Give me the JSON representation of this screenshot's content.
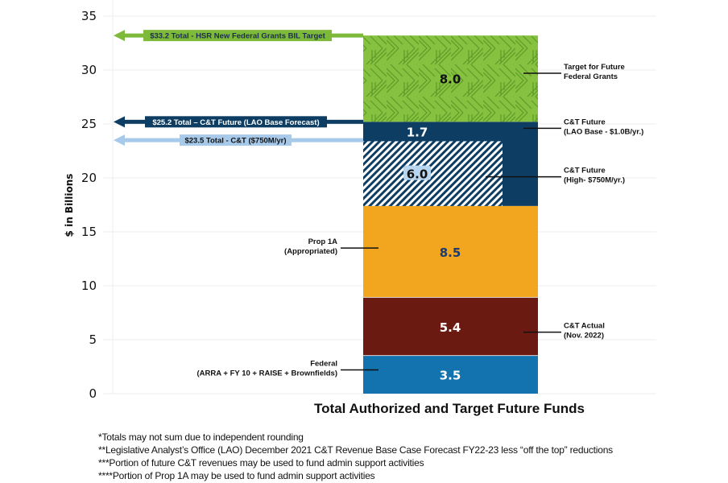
{
  "chart_data": {
    "type": "bar",
    "stacked": true,
    "title": "",
    "xlabel": "Total Authorized and Target Future Funds",
    "ylabel": "$ in Billions",
    "ylim": [
      0,
      35
    ],
    "yticks": [
      0,
      5,
      10,
      15,
      20,
      25,
      30,
      35
    ],
    "grid": true,
    "categories": [
      "Total Authorized and Target Future Funds"
    ],
    "series": [
      {
        "name": "Federal (ARRA + FY 10 + RAISE + Brownfields)",
        "label": [
          "Federal",
          "(ARRA + FY 10 + RAISE + Brownfields)"
        ],
        "value": 3.5,
        "display": "3.5",
        "color": "#1273ae",
        "text_color": "#ffffff",
        "label_side": "left"
      },
      {
        "name": "C&T Actual (Nov. 2022)",
        "label": [
          "C&T Actual",
          "(Nov. 2022)"
        ],
        "value": 5.4,
        "display": "5.4",
        "color": "#6b1a12",
        "text_color": "#ffffff",
        "label_side": "right"
      },
      {
        "name": "Prop 1A (Appropriated)",
        "label": [
          "Prop 1A",
          "(Appropriated)"
        ],
        "value": 8.5,
        "display": "8.5",
        "color": "#f2a51f",
        "text_color": "#1d3b6e",
        "label_side": "left"
      },
      {
        "name": "C&T Future (High- $750M/yr.)",
        "label": [
          "C&T Future",
          "(High- $750M/yr.)"
        ],
        "value": 6.0,
        "display": "6.0",
        "color": "#0e3d63",
        "pattern": "hatch",
        "text_color": "#111111",
        "label_side": "right"
      },
      {
        "name": "C&T Future (LAO Base - $1.0B/yr.)",
        "label": [
          "C&T Future",
          "(LAO Base - $1.0B/yr.)"
        ],
        "value": 1.7,
        "display": "1.7",
        "color": "#0e3d63",
        "text_color": "#ffffff",
        "label_side": "right"
      },
      {
        "name": "Target for Future Federal Grants",
        "label": [
          "Target for Future",
          "Federal Grants"
        ],
        "value": 8.0,
        "display": "8.0",
        "color": "#7dba3a",
        "pattern": "texture",
        "text_color": "#111111",
        "label_side": "right"
      }
    ],
    "annotations": [
      {
        "text": "$33.2 Total - HSR New Federal Grants BIL Target",
        "y": 33.2,
        "color": "#7dba3a",
        "text_color": "#1d2d4d"
      },
      {
        "text": "$25.2 Total – C&T Future (LAO Base Forecast)",
        "y": 25.2,
        "color": "#0e3d63",
        "text_color": "#ffffff"
      },
      {
        "text": "$23.5 Total - C&T ($750M/yr)",
        "y": 23.5,
        "color": "#a7c9ea",
        "text_color": "#111111"
      }
    ]
  },
  "footnotes": [
    "*Totals may not sum due to independent rounding",
    "**Legislative Analyst’s Office (LAO) December 2021 C&T Revenue Base Case Forecast FY22-23 less “off the top” reductions",
    "***Portion of future C&T revenues may be used to fund admin support activities",
    "****Portion of  Prop 1A may be used to fund admin support activities"
  ]
}
